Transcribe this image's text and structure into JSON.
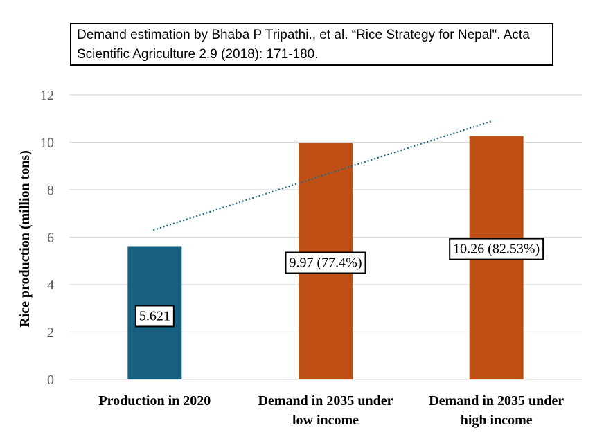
{
  "note": "Demand estimation by Bhaba P Tripathi., et al. “Rice Strategy for Nepal\". Acta Scientific Agriculture 2.9 (2018): 171-180.",
  "chart_data": {
    "type": "bar",
    "categories": [
      [
        "Production in 2020"
      ],
      [
        "Demand in 2035 under",
        "low income"
      ],
      [
        "Demand in 2035 under",
        "high income"
      ]
    ],
    "values": [
      5.621,
      9.97,
      10.26
    ],
    "data_labels": [
      "5.621",
      "9.97 (77.4%)",
      "10.26 (82.53%)"
    ],
    "bar_colors": [
      "#17607f",
      "#c04f15",
      "#c04f15"
    ],
    "ylabel": "Rice production (million tons)",
    "xlabel": "",
    "ylim": [
      0,
      12
    ],
    "yticks": [
      0,
      2,
      4,
      6,
      8,
      10,
      12
    ],
    "grid": true,
    "trendline": {
      "type": "linear",
      "style": "dotted",
      "color": "#1f6b8a",
      "start_y": 6.3,
      "end_y": 10.9
    },
    "legend": "none"
  }
}
